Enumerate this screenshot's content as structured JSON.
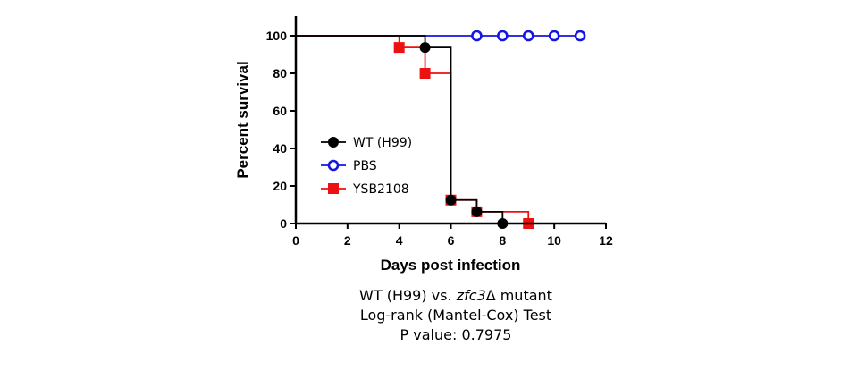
{
  "chart_data": {
    "type": "line",
    "step": true,
    "xlabel": "Days post infection",
    "ylabel": "Percent survival",
    "xlim": [
      0,
      12
    ],
    "ylim": [
      0,
      100
    ],
    "xticks": [
      0,
      2,
      4,
      6,
      8,
      10,
      12
    ],
    "yticks": [
      0,
      20,
      40,
      60,
      80,
      100
    ],
    "grid": false,
    "legend_position": "left-middle",
    "series": [
      {
        "name": "WT (H99)",
        "color": "#000000",
        "marker": "filled-circle",
        "steps": [
          [
            0,
            100
          ],
          [
            5,
            93.75
          ],
          [
            6,
            12.5
          ],
          [
            7,
            6.25
          ],
          [
            8,
            0
          ]
        ],
        "end_x": 8,
        "points": [
          [
            5,
            93.75
          ],
          [
            6,
            12.5
          ],
          [
            7,
            6.25
          ],
          [
            8,
            0
          ]
        ]
      },
      {
        "name": "PBS",
        "color": "#1515e0",
        "marker": "open-circle",
        "steps": [
          [
            0,
            100
          ]
        ],
        "end_x": 11,
        "points": [
          [
            7,
            100
          ],
          [
            8,
            100
          ],
          [
            9,
            100
          ],
          [
            10,
            100
          ],
          [
            11,
            100
          ]
        ]
      },
      {
        "name": "YSB2108",
        "color": "#ee1111",
        "marker": "filled-square",
        "steps": [
          [
            0,
            100
          ],
          [
            4,
            93.75
          ],
          [
            5,
            80
          ],
          [
            6,
            12.5
          ],
          [
            7,
            6.25
          ],
          [
            9,
            0
          ]
        ],
        "end_x": 9,
        "points": [
          [
            4,
            93.75
          ],
          [
            5,
            80
          ],
          [
            6,
            12.5
          ],
          [
            7,
            6.25
          ],
          [
            9,
            0
          ]
        ]
      }
    ]
  },
  "caption": {
    "line1_prefix": "WT (H99) vs. ",
    "line1_italic": "zfc3",
    "line1_suffix": "Δ mutant",
    "line2": "Log-rank (Mantel-Cox) Test",
    "line3": "P value: 0.7975"
  }
}
